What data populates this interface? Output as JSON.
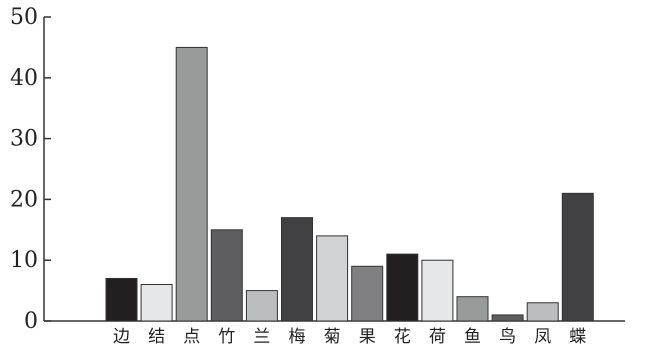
{
  "chart_data": {
    "type": "bar",
    "title": "",
    "xlabel": "",
    "ylabel": "",
    "ylim": [
      0,
      50
    ],
    "yticks": [
      0,
      10,
      20,
      30,
      40,
      50
    ],
    "grid": false,
    "categories": [
      "边",
      "结",
      "点",
      "竹",
      "兰",
      "梅",
      "菊",
      "果",
      "花",
      "荷",
      "鱼",
      "鸟",
      "凤",
      "蝶"
    ],
    "values": [
      7,
      6,
      45,
      15,
      5,
      17,
      14,
      9,
      11,
      10,
      4,
      1,
      3,
      21
    ],
    "colors": [
      "#231f20",
      "#e6e7e8",
      "#999b9b",
      "#5e5e60",
      "#bcbdbf",
      "#414042",
      "#d1d2d4",
      "#808082",
      "#231f20",
      "#e6e7e8",
      "#999b9b",
      "#5e5e60",
      "#bcbdbf",
      "#414042"
    ]
  }
}
